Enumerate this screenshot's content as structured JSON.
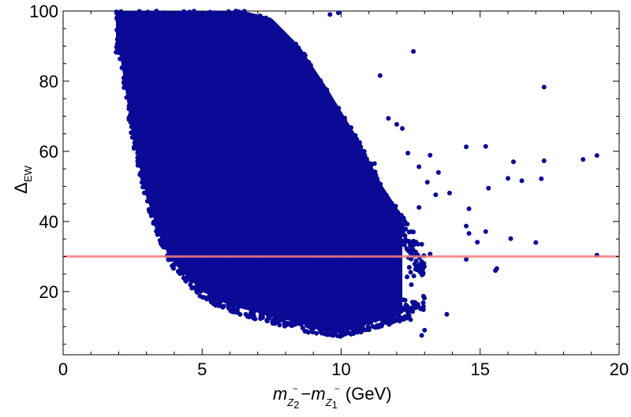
{
  "chart_data": {
    "type": "scatter",
    "title": "",
    "xlabel": {
      "base": "m",
      "term1": "Z",
      "term1_index": "2",
      "term2": "Z",
      "term2_index": "1",
      "minus": "−",
      "unit": "(GeV)",
      "accent": "~"
    },
    "ylabel": {
      "base": "Δ",
      "sub": "EW"
    },
    "xlim": [
      0,
      20
    ],
    "ylim": [
      2,
      100
    ],
    "xticks": [
      0,
      5,
      10,
      15,
      20
    ],
    "xtick_labels": [
      "0",
      "5",
      "10",
      "15",
      "20"
    ],
    "yticks": [
      20,
      40,
      60,
      80,
      100
    ],
    "ytick_labels": [
      "20",
      "40",
      "60",
      "80",
      "100"
    ],
    "grid": false,
    "marker_color": "#0a0a96",
    "reference_line": {
      "y": 30,
      "color": "#f08080"
    },
    "density_region": {
      "x_range": [
        1.9,
        13.0
      ],
      "upper_y": 100,
      "lower_envelope": [
        [
          2.0,
          88
        ],
        [
          2.5,
          62
        ],
        [
          3.0,
          45
        ],
        [
          3.5,
          33
        ],
        [
          4.0,
          26
        ],
        [
          4.5,
          22
        ],
        [
          5.0,
          18
        ],
        [
          6.0,
          14
        ],
        [
          7.0,
          12
        ],
        [
          8.0,
          10
        ],
        [
          9.0,
          8
        ],
        [
          10.0,
          7
        ],
        [
          11.0,
          9
        ],
        [
          12.0,
          11
        ],
        [
          13.0,
          15
        ]
      ],
      "upper_envelope": [
        [
          2.0,
          100
        ],
        [
          6.5,
          100
        ],
        [
          7.5,
          98
        ],
        [
          8.5,
          90
        ],
        [
          9.5,
          78
        ],
        [
          10.5,
          65
        ],
        [
          11.5,
          50
        ],
        [
          12.5,
          38
        ],
        [
          13.0,
          30
        ]
      ]
    },
    "series": [
      {
        "values": [
          [
            12.6,
            88.5
          ],
          [
            11.4,
            81.6
          ],
          [
            17.3,
            78.3
          ],
          [
            11.7,
            69.4
          ],
          [
            12.0,
            67.7
          ],
          [
            12.2,
            66.5
          ],
          [
            12.4,
            59.5
          ],
          [
            12.8,
            55.6
          ],
          [
            13.2,
            58.9
          ],
          [
            13.5,
            54.0
          ],
          [
            13.1,
            51.2
          ],
          [
            13.4,
            47.6
          ],
          [
            13.9,
            48.1
          ],
          [
            14.5,
            61.3
          ],
          [
            15.2,
            61.4
          ],
          [
            15.3,
            49.5
          ],
          [
            16.2,
            57.0
          ],
          [
            16.0,
            52.3
          ],
          [
            16.5,
            51.6
          ],
          [
            17.2,
            52.2
          ],
          [
            17.3,
            57.3
          ],
          [
            18.7,
            57.7
          ],
          [
            19.2,
            58.8
          ],
          [
            14.6,
            43.6
          ],
          [
            14.5,
            38.7
          ],
          [
            14.6,
            36.6
          ],
          [
            15.2,
            37.1
          ],
          [
            14.9,
            34.1
          ],
          [
            16.1,
            35.1
          ],
          [
            17.0,
            34.0
          ],
          [
            15.6,
            26.6
          ],
          [
            15.55,
            26.0
          ],
          [
            14.5,
            29.2
          ],
          [
            19.2,
            30.4
          ],
          [
            12.8,
            44.0
          ],
          [
            12.2,
            40.5
          ],
          [
            12.9,
            33.5
          ],
          [
            12.5,
            25.5
          ],
          [
            13.8,
            13.5
          ],
          [
            13.0,
            9.0
          ],
          [
            12.9,
            7.5
          ],
          [
            12.5,
            12.0
          ],
          [
            11.2,
            56.5
          ],
          [
            10.8,
            60.0
          ],
          [
            9.9,
            99.5
          ],
          [
            9.6,
            99.0
          ],
          [
            11.7,
            35.5
          ],
          [
            12.9,
            28.0
          ],
          [
            13.2,
            30.7
          ],
          [
            12.6,
            37.0
          ]
        ]
      }
    ]
  }
}
